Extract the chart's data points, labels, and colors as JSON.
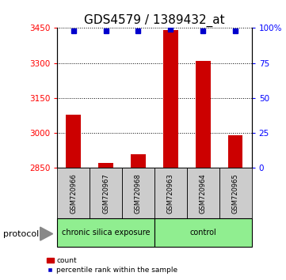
{
  "title": "GDS4579 / 1389432_at",
  "samples": [
    "GSM720966",
    "GSM720967",
    "GSM720968",
    "GSM720963",
    "GSM720964",
    "GSM720965"
  ],
  "counts": [
    3080,
    2870,
    2910,
    3440,
    3310,
    2990
  ],
  "percentile_ranks": [
    98,
    98,
    98,
    99,
    98,
    98
  ],
  "ylim_left": [
    2850,
    3450
  ],
  "ylim_right": [
    0,
    100
  ],
  "yticks_left": [
    2850,
    3000,
    3150,
    3300,
    3450
  ],
  "yticks_right": [
    0,
    25,
    50,
    75,
    100
  ],
  "bar_color": "#cc0000",
  "dot_color": "#0000cc",
  "bar_bottom": 2850,
  "title_fontsize": 11,
  "tick_fontsize": 7.5,
  "sample_label_fontsize": 6,
  "group_label_fontsize": 7,
  "legend_fontsize": 6.5,
  "protocol_fontsize": 8,
  "group1_label": "chronic silica exposure",
  "group2_label": "control",
  "group1_indices": [
    0,
    1,
    2
  ],
  "group2_indices": [
    3,
    4,
    5
  ],
  "group_color": "#90ee90",
  "sample_box_color": "#cccccc",
  "protocol_label": "protocol"
}
